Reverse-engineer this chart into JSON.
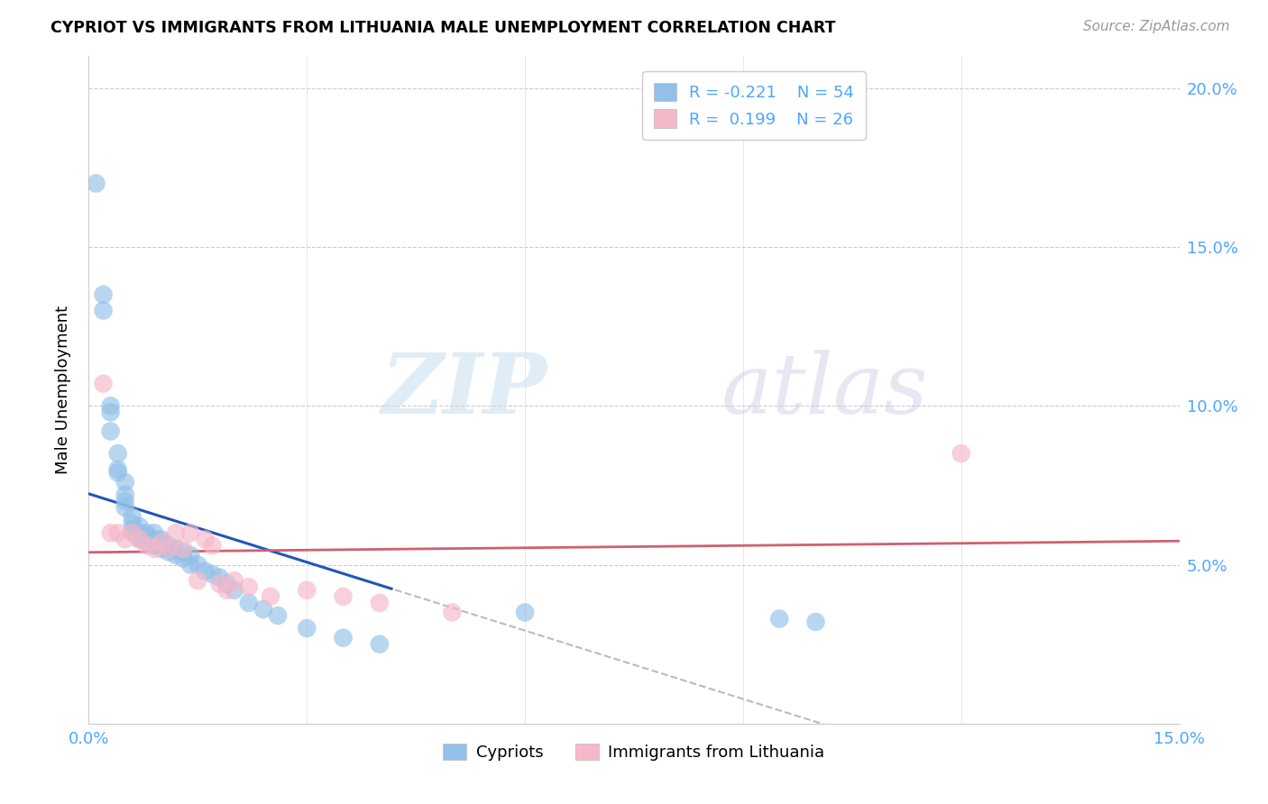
{
  "title": "CYPRIOT VS IMMIGRANTS FROM LITHUANIA MALE UNEMPLOYMENT CORRELATION CHART",
  "source": "Source: ZipAtlas.com",
  "tick_color": "#4da6ff",
  "ylabel": "Male Unemployment",
  "xlim": [
    0.0,
    0.15
  ],
  "ylim": [
    0.0,
    0.21
  ],
  "xticks": [
    0.0,
    0.03,
    0.06,
    0.09,
    0.12,
    0.15
  ],
  "yticks": [
    0.0,
    0.05,
    0.1,
    0.15,
    0.2
  ],
  "cypriot_color": "#92c0e8",
  "lithuania_color": "#f4b8c8",
  "trend_blue": "#2255bb",
  "trend_pink": "#d06070",
  "trend_dashed_color": "#bbbbbb",
  "cypriot_x": [
    0.001,
    0.002,
    0.002,
    0.003,
    0.003,
    0.003,
    0.004,
    0.004,
    0.004,
    0.005,
    0.005,
    0.005,
    0.005,
    0.006,
    0.006,
    0.006,
    0.006,
    0.007,
    0.007,
    0.007,
    0.007,
    0.008,
    0.008,
    0.008,
    0.009,
    0.009,
    0.009,
    0.01,
    0.01,
    0.01,
    0.011,
    0.011,
    0.011,
    0.012,
    0.012,
    0.013,
    0.013,
    0.014,
    0.014,
    0.015,
    0.016,
    0.017,
    0.018,
    0.019,
    0.02,
    0.022,
    0.024,
    0.026,
    0.03,
    0.035,
    0.04,
    0.06,
    0.095,
    0.1
  ],
  "cypriot_y": [
    0.17,
    0.135,
    0.13,
    0.1,
    0.098,
    0.092,
    0.085,
    0.08,
    0.079,
    0.076,
    0.072,
    0.07,
    0.068,
    0.065,
    0.063,
    0.061,
    0.06,
    0.062,
    0.06,
    0.059,
    0.058,
    0.06,
    0.059,
    0.057,
    0.06,
    0.058,
    0.056,
    0.058,
    0.057,
    0.055,
    0.056,
    0.055,
    0.054,
    0.055,
    0.053,
    0.054,
    0.052,
    0.053,
    0.05,
    0.05,
    0.048,
    0.047,
    0.046,
    0.044,
    0.042,
    0.038,
    0.036,
    0.034,
    0.03,
    0.027,
    0.025,
    0.035,
    0.033,
    0.032
  ],
  "lithuania_x": [
    0.002,
    0.003,
    0.004,
    0.005,
    0.006,
    0.007,
    0.008,
    0.009,
    0.01,
    0.011,
    0.012,
    0.013,
    0.014,
    0.015,
    0.016,
    0.017,
    0.018,
    0.019,
    0.02,
    0.022,
    0.025,
    0.03,
    0.035,
    0.04,
    0.12,
    0.05
  ],
  "lithuania_y": [
    0.107,
    0.06,
    0.06,
    0.058,
    0.06,
    0.058,
    0.056,
    0.055,
    0.057,
    0.055,
    0.06,
    0.055,
    0.06,
    0.045,
    0.058,
    0.056,
    0.044,
    0.042,
    0.045,
    0.043,
    0.04,
    0.042,
    0.04,
    0.038,
    0.085,
    0.035
  ],
  "watermark_zip": "ZIP",
  "watermark_atlas": "atlas",
  "background_color": "#ffffff"
}
